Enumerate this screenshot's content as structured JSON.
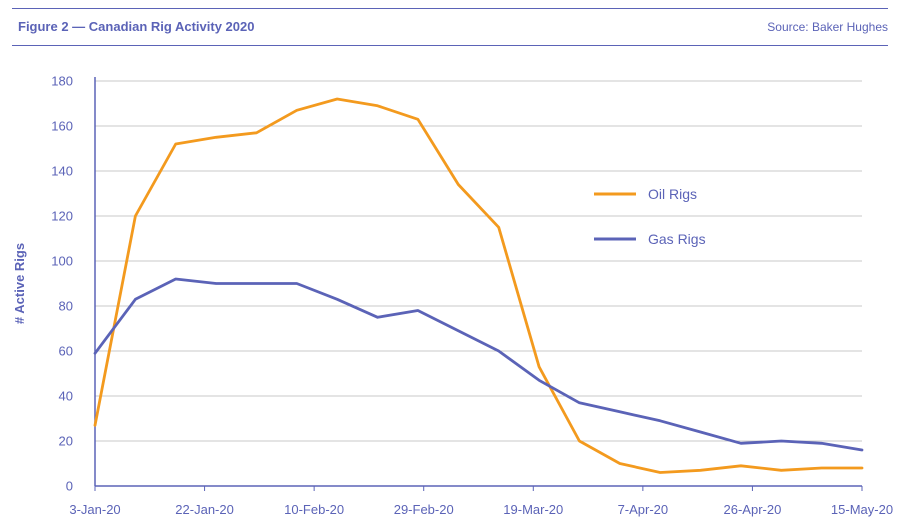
{
  "header": {
    "title": "Figure 2 — Canadian Rig Activity 2020",
    "source": "Source: Baker Hughes"
  },
  "colors": {
    "accent": "#5b63b7",
    "oil": "#f39a1e",
    "gas": "#5b63b7",
    "grid": "#c8c8c8"
  },
  "chart_data": {
    "type": "line",
    "ylabel": "# Active Rigs",
    "ylim": [
      0,
      180
    ],
    "y_ticks": [
      0,
      20,
      40,
      60,
      80,
      100,
      120,
      140,
      160,
      180
    ],
    "x_tick_labels": [
      "3-Jan-20",
      "22-Jan-20",
      "10-Feb-20",
      "29-Feb-20",
      "19-Mar-20",
      "7-Apr-20",
      "26-Apr-20",
      "15-May-20"
    ],
    "x_dates": [
      "2020-01-03",
      "2020-01-10",
      "2020-01-17",
      "2020-01-24",
      "2020-01-31",
      "2020-02-07",
      "2020-02-14",
      "2020-02-21",
      "2020-02-28",
      "2020-03-06",
      "2020-03-13",
      "2020-03-20",
      "2020-03-27",
      "2020-04-03",
      "2020-04-10",
      "2020-04-17",
      "2020-04-24",
      "2020-05-01",
      "2020-05-08",
      "2020-05-15"
    ],
    "grid": true,
    "legend_position": "right",
    "series": [
      {
        "name": "Oil Rigs",
        "color": "#f39a1e",
        "values": [
          27,
          120,
          152,
          155,
          157,
          167,
          172,
          169,
          163,
          134,
          115,
          53,
          20,
          10,
          6,
          7,
          9,
          7,
          8,
          8
        ]
      },
      {
        "name": "Gas Rigs",
        "color": "#5b63b7",
        "values": [
          59,
          83,
          92,
          90,
          90,
          90,
          83,
          75,
          78,
          69,
          60,
          47,
          37,
          33,
          29,
          24,
          19,
          20,
          19,
          16
        ]
      }
    ]
  }
}
